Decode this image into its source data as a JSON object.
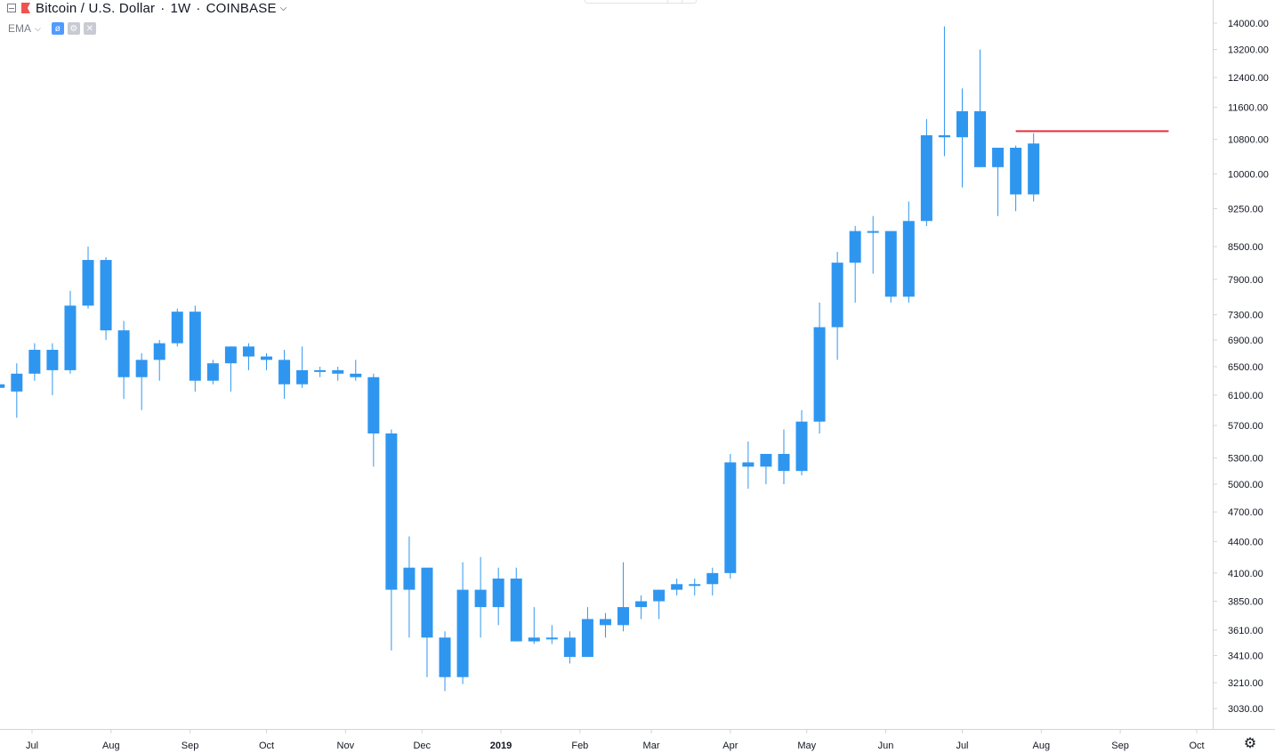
{
  "legend": {
    "symbol": "Bitcoin / U.S. Dollar",
    "interval": "1W",
    "exchange": "COINBASE",
    "icons": [
      "collapse-icon",
      "bitcoin-flag-icon",
      "chevron-down-icon"
    ]
  },
  "study": {
    "name": "EMA",
    "icons": [
      "chevron-down-icon",
      "visibility-icon",
      "settings-icon",
      "remove-icon"
    ]
  },
  "colors": {
    "candle": "#2f96f0",
    "hline": "#e8323c",
    "axis_text": "#131722",
    "axis_line": "#d1d4dc"
  },
  "chart_data": {
    "type": "candlestick",
    "title": "Bitcoin / U.S. Dollar, 1W, COINBASE",
    "y_scale": "log",
    "ylim": [
      2850,
      15000
    ],
    "y_ticks": [
      "14000.00",
      "13200.00",
      "12400.00",
      "11600.00",
      "10800.00",
      "10000.00",
      "9250.00",
      "8500.00",
      "7900.00",
      "7300.00",
      "6900.00",
      "6500.00",
      "6100.00",
      "5700.00",
      "5300.00",
      "5000.00",
      "4700.00",
      "4400.00",
      "4100.00",
      "3850.00",
      "3610.00",
      "3410.00",
      "3210.00",
      "3030.00"
    ],
    "x_labels": [
      {
        "label": "Jul",
        "date": "2018-07-01"
      },
      {
        "label": "Aug",
        "date": "2018-08-01"
      },
      {
        "label": "Sep",
        "date": "2018-09-01"
      },
      {
        "label": "Oct",
        "date": "2018-10-01"
      },
      {
        "label": "Nov",
        "date": "2018-11-01"
      },
      {
        "label": "Dec",
        "date": "2018-12-01"
      },
      {
        "label": "2019",
        "date": "2019-01-01",
        "bold": true
      },
      {
        "label": "Feb",
        "date": "2019-02-01"
      },
      {
        "label": "Mar",
        "date": "2019-03-01"
      },
      {
        "label": "Apr",
        "date": "2019-04-01"
      },
      {
        "label": "May",
        "date": "2019-05-01"
      },
      {
        "label": "Jun",
        "date": "2019-06-01"
      },
      {
        "label": "Jul",
        "date": "2019-07-01"
      },
      {
        "label": "Aug",
        "date": "2019-08-01"
      },
      {
        "label": "Sep",
        "date": "2019-09-01"
      },
      {
        "label": "Oct",
        "date": "2019-10-01"
      }
    ],
    "first_week": "2018-06-18",
    "candles": [
      [
        6250,
        6300,
        6100,
        6200
      ],
      [
        6150,
        6550,
        5800,
        6400
      ],
      [
        6400,
        6850,
        6300,
        6750
      ],
      [
        6750,
        6850,
        6100,
        6450
      ],
      [
        6450,
        7700,
        6400,
        7450
      ],
      [
        7450,
        8500,
        7400,
        8250
      ],
      [
        8250,
        8300,
        6900,
        7050
      ],
      [
        7050,
        7200,
        6050,
        6350
      ],
      [
        6350,
        6700,
        5900,
        6600
      ],
      [
        6600,
        6900,
        6300,
        6850
      ],
      [
        6850,
        7400,
        6800,
        7350
      ],
      [
        7350,
        7450,
        6150,
        6300
      ],
      [
        6300,
        6600,
        6250,
        6550
      ],
      [
        6550,
        6800,
        6150,
        6800
      ],
      [
        6800,
        6850,
        6450,
        6650
      ],
      [
        6650,
        6700,
        6450,
        6600
      ],
      [
        6600,
        6750,
        6050,
        6250
      ],
      [
        6250,
        6800,
        6200,
        6450
      ],
      [
        6450,
        6500,
        6350,
        6450
      ],
      [
        6450,
        6500,
        6300,
        6400
      ],
      [
        6400,
        6600,
        6300,
        6350
      ],
      [
        6350,
        6400,
        5200,
        5600
      ],
      [
        5600,
        5650,
        3450,
        3950
      ],
      [
        3950,
        4450,
        3550,
        4150
      ],
      [
        4150,
        4150,
        3250,
        3550
      ],
      [
        3550,
        3600,
        3150,
        3250
      ],
      [
        3250,
        4200,
        3200,
        3950
      ],
      [
        3950,
        4250,
        3550,
        3800
      ],
      [
        3800,
        4150,
        3650,
        4050
      ],
      [
        4050,
        4150,
        3520,
        3520
      ],
      [
        3520,
        3800,
        3500,
        3550
      ],
      [
        3550,
        3650,
        3500,
        3550
      ],
      [
        3550,
        3600,
        3350,
        3400
      ],
      [
        3400,
        3800,
        3400,
        3700
      ],
      [
        3700,
        3750,
        3550,
        3650
      ],
      [
        3650,
        4200,
        3600,
        3800
      ],
      [
        3800,
        3900,
        3700,
        3850
      ],
      [
        3850,
        3950,
        3700,
        3950
      ],
      [
        3950,
        4050,
        3900,
        4000
      ],
      [
        4000,
        4050,
        3900,
        4000
      ],
      [
        4000,
        4150,
        3900,
        4100
      ],
      [
        4100,
        5350,
        4050,
        5250
      ],
      [
        5250,
        5500,
        4950,
        5200
      ],
      [
        5200,
        5350,
        5000,
        5350
      ],
      [
        5350,
        5650,
        5000,
        5150
      ],
      [
        5150,
        5900,
        5100,
        5750
      ],
      [
        5750,
        7500,
        5600,
        7100
      ],
      [
        7100,
        8400,
        6600,
        8200
      ],
      [
        8200,
        8900,
        7500,
        8800
      ],
      [
        8800,
        9100,
        8000,
        8800
      ],
      [
        8800,
        8800,
        7500,
        7600
      ],
      [
        7600,
        9400,
        7500,
        9000
      ],
      [
        9000,
        11300,
        8900,
        10900
      ],
      [
        10900,
        13900,
        10400,
        10850
      ],
      [
        10850,
        12100,
        9700,
        11500
      ],
      [
        11500,
        13200,
        10150,
        10150
      ],
      [
        10150,
        10550,
        9100,
        10600
      ],
      [
        10600,
        10650,
        9200,
        9550
      ],
      [
        9550,
        10950,
        9400,
        10700
      ]
    ],
    "hline": {
      "price": 11000,
      "from_week": 57,
      "to_date": "2019-09-20"
    }
  }
}
